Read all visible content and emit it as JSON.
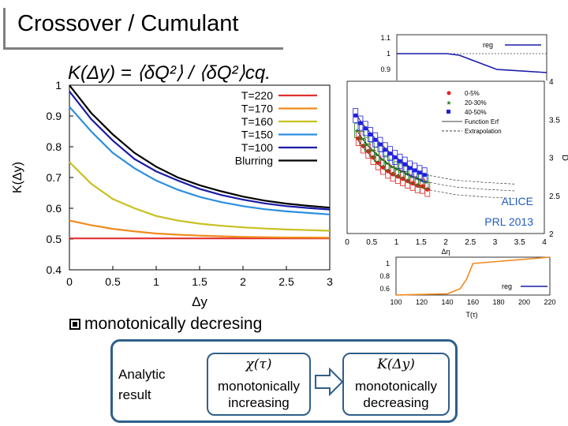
{
  "slide": {
    "title": "Crossover / Cumulant",
    "bullet": "monotonically decresing",
    "flow": {
      "left_label_line1": "Analytic",
      "left_label_line2": "result",
      "box1_math": "χ(τ)",
      "box1_line1": "monotonically",
      "box1_line2": "increasing",
      "box2_math": "K(Δy)",
      "box2_line1": "monotonically",
      "box2_line2": "decreasing"
    }
  },
  "chart_data": [
    {
      "type": "line",
      "title": "K(Δy) = ⟨δQ²⟩ / ⟨δQ²⟩cq.",
      "xlabel": "Δy",
      "ylabel": "K(Δy)",
      "xlim": [
        0,
        3
      ],
      "ylim": [
        0.4,
        1.0
      ],
      "xticks": [
        "0",
        "0.5",
        "1",
        "1.5",
        "2",
        "2.5",
        "3"
      ],
      "yticks": [
        "0.4",
        "0.5",
        "0.6",
        "0.7",
        "0.8",
        "0.9",
        "1"
      ],
      "legend_position": "top-right",
      "x": [
        0,
        0.25,
        0.5,
        0.75,
        1.0,
        1.25,
        1.5,
        1.75,
        2.0,
        2.25,
        2.5,
        2.75,
        3.0
      ],
      "series": [
        {
          "name": "T=220",
          "color": "#e03030",
          "values": [
            0.502,
            0.502,
            0.502,
            0.502,
            0.502,
            0.502,
            0.502,
            0.502,
            0.502,
            0.502,
            0.502,
            0.502,
            0.502
          ]
        },
        {
          "name": "T=170",
          "color": "#f08a1c",
          "values": [
            0.56,
            0.545,
            0.533,
            0.525,
            0.518,
            0.514,
            0.511,
            0.509,
            0.507,
            0.506,
            0.505,
            0.505,
            0.504
          ]
        },
        {
          "name": "T=160",
          "color": "#c8c020",
          "values": [
            0.75,
            0.68,
            0.63,
            0.6,
            0.575,
            0.56,
            0.55,
            0.543,
            0.538,
            0.534,
            0.531,
            0.529,
            0.527
          ]
        },
        {
          "name": "T=150",
          "color": "#2a8fe0",
          "values": [
            0.93,
            0.85,
            0.78,
            0.73,
            0.69,
            0.66,
            0.637,
            0.62,
            0.607,
            0.597,
            0.59,
            0.585,
            0.58
          ]
        },
        {
          "name": "T=100",
          "color": "#1a1aa8",
          "values": [
            0.98,
            0.89,
            0.82,
            0.76,
            0.72,
            0.69,
            0.663,
            0.643,
            0.628,
            0.616,
            0.607,
            0.601,
            0.596
          ]
        },
        {
          "name": "Blurring",
          "color": "#000000",
          "values": [
            1.0,
            0.91,
            0.84,
            0.78,
            0.735,
            0.7,
            0.675,
            0.655,
            0.638,
            0.625,
            0.615,
            0.608,
            0.602
          ]
        }
      ]
    },
    {
      "type": "scatter",
      "title": "ALICE PRL 2013",
      "xlabel": "Δη",
      "ylabel": "D",
      "xlim": [
        0,
        4
      ],
      "ylim": [
        2,
        4
      ],
      "xticks": [
        "0",
        "0.5",
        "1",
        "1.5",
        "2",
        "2.5",
        "3",
        "3.5",
        "4"
      ],
      "yticks": [
        "2",
        "2.5",
        "3",
        "3.5",
        "4"
      ],
      "legend_position": "top-right",
      "legend": [
        "0-5%",
        "20-30%",
        "40-50%",
        "Function Erf",
        "Extrapolation"
      ],
      "series": [
        {
          "name": "0-5%",
          "color": "#e02020",
          "x": [
            0.2,
            0.3,
            0.4,
            0.5,
            0.6,
            0.7,
            0.8,
            0.9,
            1.0,
            1.1,
            1.2,
            1.3,
            1.4,
            1.5,
            1.6
          ],
          "values": [
            3.25,
            3.15,
            3.08,
            3.0,
            2.93,
            2.87,
            2.82,
            2.78,
            2.75,
            2.72,
            2.69,
            2.66,
            2.63,
            2.62,
            2.58
          ]
        },
        {
          "name": "20-30%",
          "color": "#208020",
          "x": [
            0.2,
            0.3,
            0.4,
            0.5,
            0.6,
            0.7,
            0.8,
            0.9,
            1.0,
            1.1,
            1.2,
            1.3,
            1.4,
            1.5,
            1.6
          ],
          "values": [
            3.35,
            3.25,
            3.17,
            3.1,
            3.04,
            2.98,
            2.93,
            2.88,
            2.85,
            2.82,
            2.79,
            2.75,
            2.73,
            2.7,
            2.68
          ]
        },
        {
          "name": "40-50%",
          "color": "#2020e0",
          "x": [
            0.2,
            0.3,
            0.4,
            0.5,
            0.6,
            0.7,
            0.8,
            0.9,
            1.0,
            1.1,
            1.2,
            1.3,
            1.4,
            1.5,
            1.6
          ],
          "values": [
            3.55,
            3.45,
            3.38,
            3.3,
            3.23,
            3.17,
            3.1,
            3.05,
            3.0,
            2.95,
            2.91,
            2.86,
            2.83,
            2.8,
            2.77
          ]
        }
      ]
    },
    {
      "type": "line",
      "xlabel": "T(τ)",
      "xlim": [
        100,
        220
      ],
      "xticks": [
        "100",
        "120",
        "140",
        "160",
        "180",
        "200",
        "220"
      ],
      "yticks": [
        "1.1",
        "1",
        "0.9"
      ],
      "legend": [
        "reg"
      ],
      "series": [
        {
          "name": "reg",
          "color": "#1a1aa8",
          "x": [
            100,
            120,
            140,
            150,
            160,
            180,
            220
          ],
          "values": [
            1.0,
            1.0,
            1.0,
            0.99,
            0.96,
            0.9,
            0.88
          ]
        }
      ]
    },
    {
      "type": "line",
      "xlabel": "T(τ)",
      "xlim": [
        100,
        220
      ],
      "xticks": [
        "100",
        "120",
        "140",
        "160",
        "180",
        "200",
        "220"
      ],
      "yticks": [
        "1",
        "0.8",
        "0.6"
      ],
      "legend": [
        "reg"
      ],
      "series": [
        {
          "name": "reg",
          "color": "#1a1aa8",
          "x": [
            100,
            140,
            150,
            155,
            160,
            220
          ],
          "values": [
            0.5,
            0.52,
            0.6,
            0.75,
            1.0,
            1.1
          ]
        }
      ]
    }
  ]
}
